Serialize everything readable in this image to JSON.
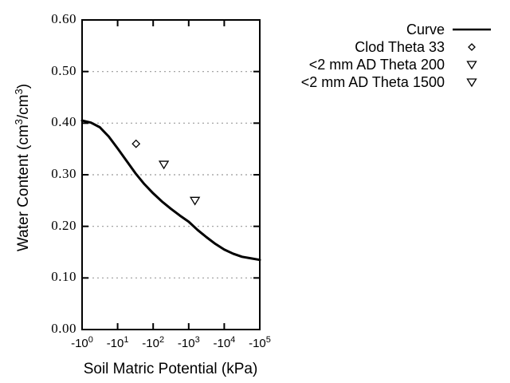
{
  "window": {
    "background": "#ffffff"
  },
  "axes": {
    "y_title_parts": {
      "prefix": "Water Content (cm",
      "sup1": "3",
      "mid": "/cm",
      "sup2": "3",
      "suffix": ")"
    }
  },
  "chart_data": {
    "type": "line",
    "title": "",
    "xlabel": "Soil Matric Potential (kPa)",
    "ylabel": "Water Content (cm3/cm3)",
    "legend_position": "top-right, outside plot area",
    "grid": "horizontal dotted gridlines at y ticks",
    "colors": {
      "curve": "#000000",
      "axis": "#000000",
      "grid": "#999999",
      "background": "#ffffff",
      "marker_fill": "#ffffff"
    },
    "x_axis": {
      "scale": "negative log10 of |kPa|",
      "range_decades": [
        0,
        5
      ],
      "tick_labels": [
        "-10^0",
        "-10^1",
        "-10^2",
        "-10^3",
        "-10^4",
        "-10^5"
      ]
    },
    "y_axis": {
      "range": [
        0.0,
        0.6
      ],
      "tick_labels": [
        "0.00",
        "0.10",
        "0.20",
        "0.30",
        "0.40",
        "0.50",
        "0.60"
      ]
    },
    "series": [
      {
        "name": "Curve",
        "kind": "line",
        "marker": "none",
        "color": "#000000",
        "x_log10_abs_kpa": [
          0,
          0.25,
          0.5,
          0.75,
          1,
          1.25,
          1.5,
          1.75,
          2,
          2.25,
          2.5,
          2.75,
          3,
          3.25,
          3.5,
          3.75,
          4,
          4.25,
          4.5,
          4.75,
          5
        ],
        "water_content": [
          0.405,
          0.401,
          0.392,
          0.374,
          0.351,
          0.327,
          0.303,
          0.282,
          0.264,
          0.248,
          0.234,
          0.221,
          0.209,
          0.193,
          0.179,
          0.166,
          0.155,
          0.147,
          0.141,
          0.138,
          0.135
        ]
      },
      {
        "name": "Clod Theta 33",
        "kind": "scatter",
        "marker": "diamond",
        "color": "#000000",
        "points": [
          {
            "matric_potential_kpa": -33,
            "water_content": 0.36
          }
        ]
      },
      {
        "name": "<2 mm AD Theta 200",
        "kind": "scatter",
        "marker": "triangle-down",
        "color": "#000000",
        "points": [
          {
            "matric_potential_kpa": -200,
            "water_content": 0.32
          }
        ]
      },
      {
        "name": "<2 mm AD Theta 1500",
        "kind": "scatter",
        "marker": "triangle-down",
        "color": "#000000",
        "points": [
          {
            "matric_potential_kpa": -1500,
            "water_content": 0.25
          }
        ]
      }
    ]
  }
}
